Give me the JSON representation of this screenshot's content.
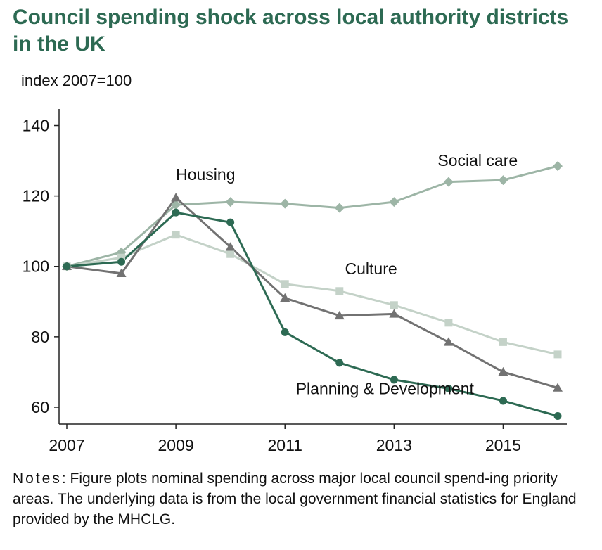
{
  "title": "Council spending shock across local authority districts in the UK",
  "notes": {
    "lead": "Notes",
    "text": ": Figure plots nominal spending across major local council spend-ing priority areas. The underlying data is from the local government financial statistics for England provided by the MHCLG."
  },
  "chart_data": {
    "type": "line",
    "ylabel": "index 2007=100",
    "xlabel": "",
    "ylim": [
      56,
      142
    ],
    "xlim": [
      2007,
      2016
    ],
    "x": [
      2007,
      2008,
      2009,
      2010,
      2011,
      2012,
      2013,
      2014,
      2015,
      2016
    ],
    "xticks": [
      2007,
      2009,
      2011,
      2013,
      2015
    ],
    "yticks": [
      60,
      80,
      100,
      120,
      140
    ],
    "grid": false,
    "legend": "none",
    "series": [
      {
        "name": "Social care",
        "color": "#9db5a6",
        "marker": "diamond",
        "values": [
          100,
          104,
          117.5,
          118.3,
          117.8,
          116.6,
          118.3,
          124,
          124.5,
          128.5
        ],
        "label_x": 2013.8,
        "label_y": 128.5
      },
      {
        "name": "Culture",
        "color": "#c4d2c8",
        "marker": "square",
        "values": [
          100,
          102.5,
          109,
          103.5,
          95,
          93,
          89,
          84,
          78.5,
          75
        ],
        "label_x": 2012.1,
        "label_y": 97.8
      },
      {
        "name": "Housing",
        "color": "#727272",
        "marker": "triangle",
        "values": [
          100,
          98,
          119.5,
          105.5,
          91,
          86,
          86.5,
          78.5,
          70,
          65.5
        ],
        "label_x": 2009.0,
        "label_y": 124.5
      },
      {
        "name": "Planning & Development",
        "color": "#2d6a53",
        "marker": "circle",
        "values": [
          100,
          101.3,
          115.3,
          112.5,
          81.3,
          72.6,
          67.8,
          65.3,
          61.8,
          57.5
        ],
        "label_x": 2011.2,
        "label_y": 63.7
      }
    ]
  }
}
